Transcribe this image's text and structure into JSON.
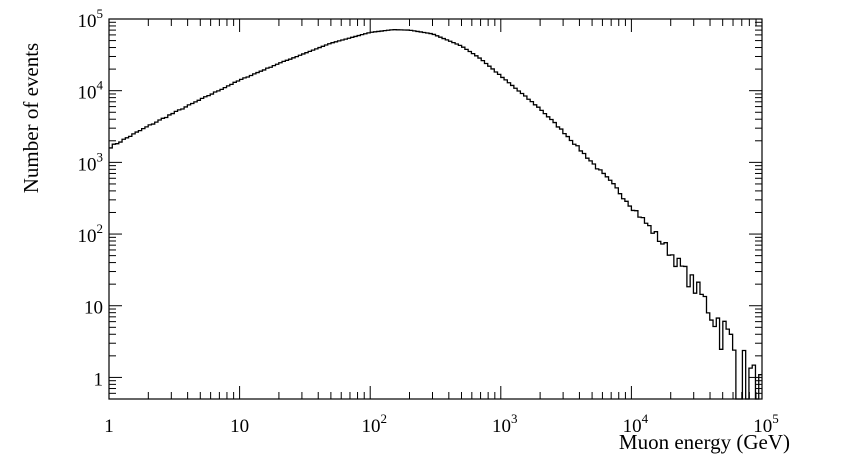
{
  "chart_data": {
    "type": "histogram",
    "xlabel": "Muon energy (GeV)",
    "ylabel": "Number of events",
    "x_scale": "log",
    "y_scale": "log",
    "xlim": [
      1,
      100000
    ],
    "ylim": [
      0.5,
      100000
    ],
    "grid": false,
    "x_ticks": [
      {
        "value": 1,
        "base": "1",
        "exp": ""
      },
      {
        "value": 10,
        "base": "10",
        "exp": ""
      },
      {
        "value": 100,
        "base": "10",
        "exp": "2"
      },
      {
        "value": 1000,
        "base": "10",
        "exp": "3"
      },
      {
        "value": 10000,
        "base": "10",
        "exp": "4"
      },
      {
        "value": 100000,
        "base": "10",
        "exp": "5"
      }
    ],
    "y_ticks": [
      {
        "value": 1,
        "base": "1",
        "exp": ""
      },
      {
        "value": 10,
        "base": "10",
        "exp": ""
      },
      {
        "value": 100,
        "base": "10",
        "exp": "2"
      },
      {
        "value": 1000,
        "base": "10",
        "exp": "3"
      },
      {
        "value": 10000,
        "base": "10",
        "exp": "4"
      },
      {
        "value": 100000,
        "base": "10",
        "exp": "5"
      }
    ],
    "series": [
      {
        "x": [
          1,
          2,
          3,
          5,
          10,
          20,
          30,
          50,
          100,
          150,
          200,
          300,
          500,
          700,
          1000,
          2000,
          3000,
          5000,
          7000,
          10000,
          20000,
          30000,
          50000,
          70000,
          100000
        ],
        "y": [
          1600,
          3200,
          4700,
          7500,
          14000,
          24000,
          32000,
          46000,
          65000,
          71000,
          70000,
          62000,
          42000,
          28000,
          16000,
          5600,
          2700,
          1000,
          520,
          250,
          55,
          20,
          5,
          1.5,
          0.6
        ]
      }
    ]
  }
}
